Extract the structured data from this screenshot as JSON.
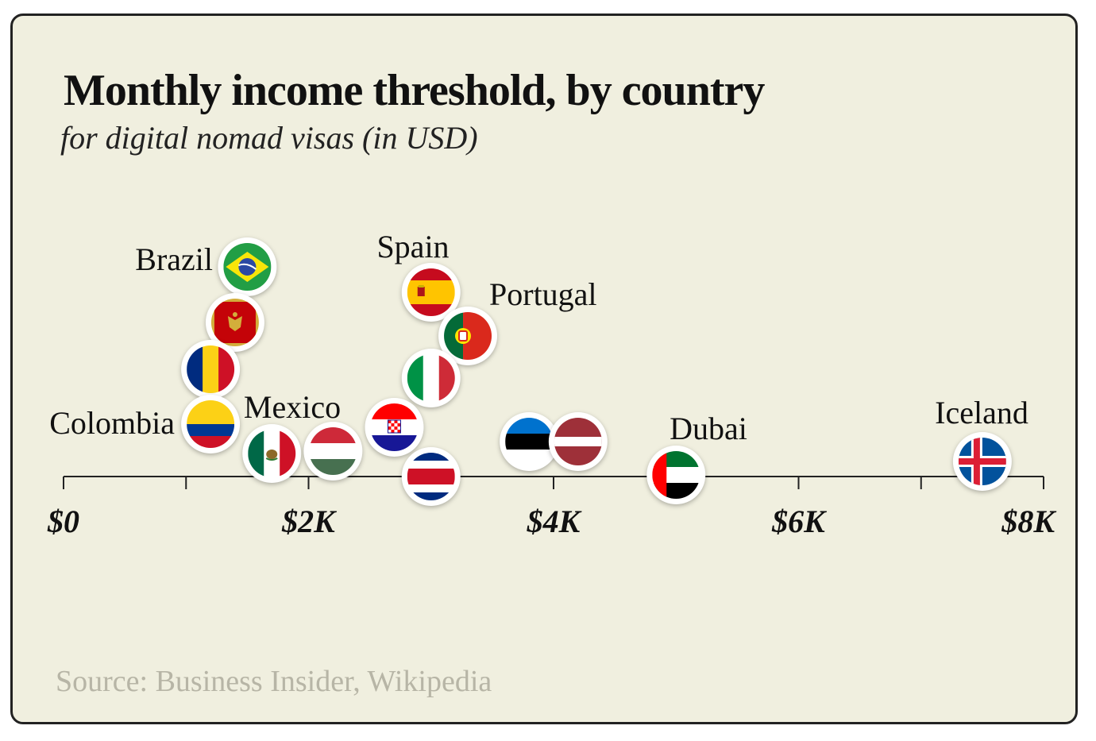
{
  "chart_data": {
    "type": "scatter",
    "title": "Monthly income threshold, by country",
    "subtitle": "for digital nomad visas (in USD)",
    "source": "Source: Business Insider, Wikipedia",
    "xlabel": "",
    "ylabel": "",
    "xlim": [
      0,
      8000
    ],
    "grid": false,
    "legend": "none",
    "x_ticks": [
      {
        "value": 0,
        "label": "$0"
      },
      {
        "value": 1000,
        "label": ""
      },
      {
        "value": 2000,
        "label": "$2K"
      },
      {
        "value": 3000,
        "label": ""
      },
      {
        "value": 4000,
        "label": "$4K"
      },
      {
        "value": 5000,
        "label": ""
      },
      {
        "value": 6000,
        "label": "$6K"
      },
      {
        "value": 7000,
        "label": ""
      },
      {
        "value": 8000,
        "label": "$8K"
      }
    ],
    "points": [
      {
        "country": "Brazil",
        "label": "Brazil",
        "value": 1500,
        "flag": "brazil"
      },
      {
        "country": "Montenegro",
        "label": "",
        "value": 1400,
        "flag": "montenegro"
      },
      {
        "country": "Romania",
        "label": "",
        "value": 1200,
        "flag": "romania"
      },
      {
        "country": "Colombia",
        "label": "Colombia",
        "value": 1200,
        "flag": "colombia"
      },
      {
        "country": "Mexico",
        "label": "Mexico",
        "value": 1700,
        "flag": "mexico"
      },
      {
        "country": "Hungary",
        "label": "",
        "value": 2200,
        "flag": "hungary"
      },
      {
        "country": "Spain",
        "label": "Spain",
        "value": 3000,
        "flag": "spain"
      },
      {
        "country": "Portugal",
        "label": "Portugal",
        "value": 3300,
        "flag": "portugal"
      },
      {
        "country": "Italy",
        "label": "",
        "value": 3000,
        "flag": "italy"
      },
      {
        "country": "Croatia",
        "label": "",
        "value": 2700,
        "flag": "croatia"
      },
      {
        "country": "Costa Rica",
        "label": "",
        "value": 3000,
        "flag": "costa-rica"
      },
      {
        "country": "Estonia",
        "label": "",
        "value": 3800,
        "flag": "estonia"
      },
      {
        "country": "Latvia",
        "label": "",
        "value": 4200,
        "flag": "latvia"
      },
      {
        "country": "Dubai",
        "label": "Dubai",
        "value": 5000,
        "flag": "uae"
      },
      {
        "country": "Iceland",
        "label": "Iceland",
        "value": 7500,
        "flag": "iceland"
      }
    ]
  },
  "colors": {
    "background": "#f0efdf",
    "border": "#222222",
    "text": "#111111",
    "source_text": "#b7b5a6",
    "axis": "#222222"
  }
}
